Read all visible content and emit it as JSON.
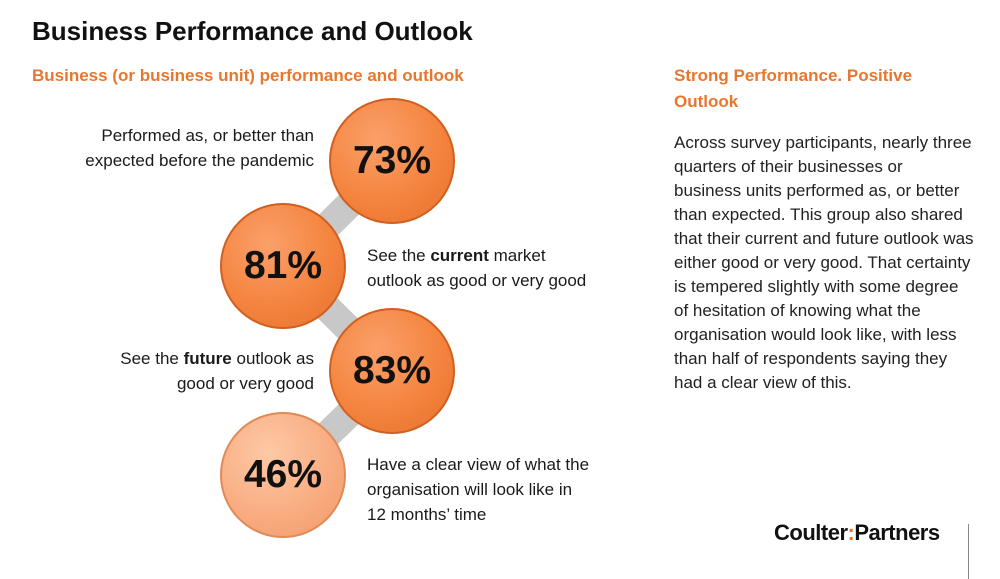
{
  "page": {
    "title": "Business Performance and Outlook",
    "subtitle": "Business (or business unit) performance and outlook"
  },
  "stats": [
    {
      "value": "73%",
      "shade": "dark",
      "label_parts": [
        "Performed as, or better than",
        "expected before the pandemic"
      ]
    },
    {
      "value": "81%",
      "shade": "dark",
      "label_pre": "See the ",
      "label_bold": "current",
      "label_post": " market",
      "label_line2": "outlook as good or very good"
    },
    {
      "value": "83%",
      "shade": "dark",
      "label_pre": "See the ",
      "label_bold": "future",
      "label_post": " outlook as",
      "label_line2": "good or very good"
    },
    {
      "value": "46%",
      "shade": "light",
      "label_parts": [
        "Have a clear view of what the",
        "organisation will look like in",
        "12 months’ time"
      ]
    }
  ],
  "sidebar": {
    "heading": "Strong Performance.  Positive Outlook",
    "body": "Across survey participants, nearly three quarters of their businesses or business units performed as, or better than expected.  This group also shared that their current and future outlook was either good or very good.  That certainty is tempered slightly with some degree of hesitation of knowing what the organisation would look like, with less than half of respondents saying they had a clear view of this."
  },
  "logo": {
    "part1": "Coulter",
    "separator": ":",
    "part2": "Partners"
  },
  "colors": {
    "accent": "#e8772e",
    "circle_dark": "#f4843f",
    "circle_light": "#f9ad82",
    "connector": "#c8c8c8"
  }
}
